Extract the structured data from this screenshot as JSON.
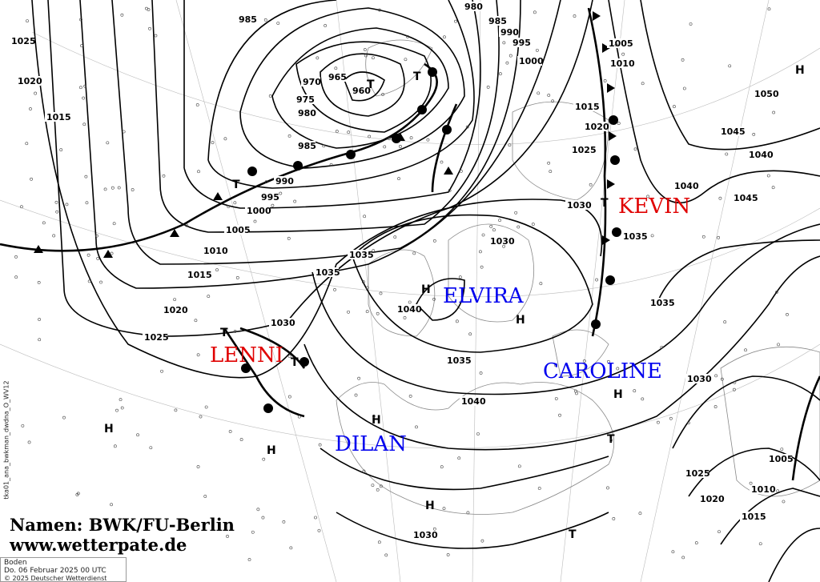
{
  "map": {
    "type": "surface analysis weather map",
    "side_label": "tka01_ana_bwkman_dwdna_O_WV12",
    "credit_line1": "Namen: BWK/FU-Berlin",
    "credit_line2": "www.wetterpate.de",
    "info": {
      "level": "Boden",
      "datetime": "Do. 06 Februar 2025 00 UTC",
      "copyright": "© 2025 Deutscher Wetterdienst"
    },
    "systems": [
      {
        "name": "LENNI",
        "kind": "low",
        "color": "#e00000"
      },
      {
        "name": "KEVIN",
        "kind": "low",
        "color": "#e00000"
      },
      {
        "name": "ELVIRA",
        "kind": "high",
        "color": "#0000ee"
      },
      {
        "name": "CAROLINE",
        "kind": "high",
        "color": "#0000ee"
      },
      {
        "name": "DILAN",
        "kind": "high",
        "color": "#0000ee"
      }
    ],
    "pressure_markers": [
      "T",
      "T",
      "T",
      "T",
      "T",
      "T",
      "T",
      "T",
      "H",
      "H",
      "H",
      "H",
      "H",
      "H",
      "H",
      "H"
    ],
    "isobar_labels": [
      "985",
      "1025",
      "1020",
      "1015",
      "960",
      "965",
      "970",
      "975",
      "980",
      "985",
      "990",
      "995",
      "1000",
      "1005",
      "1010",
      "1015",
      "1020",
      "1025",
      "1030",
      "1035",
      "1040",
      "1045",
      "980",
      "985",
      "990",
      "995",
      "1000",
      "1005",
      "1010",
      "1015",
      "1020",
      "1025",
      "1030",
      "1035",
      "1040",
      "1045",
      "1050",
      "1040",
      "1035",
      "1030",
      "1035",
      "1040",
      "1030",
      "1025",
      "1020",
      "1015",
      "1010",
      "1005",
      "1030",
      "1035"
    ],
    "colors": {
      "low_name": "#e00000",
      "high_name": "#0000ee",
      "isobar": "#000000",
      "coast": "#888888"
    }
  }
}
